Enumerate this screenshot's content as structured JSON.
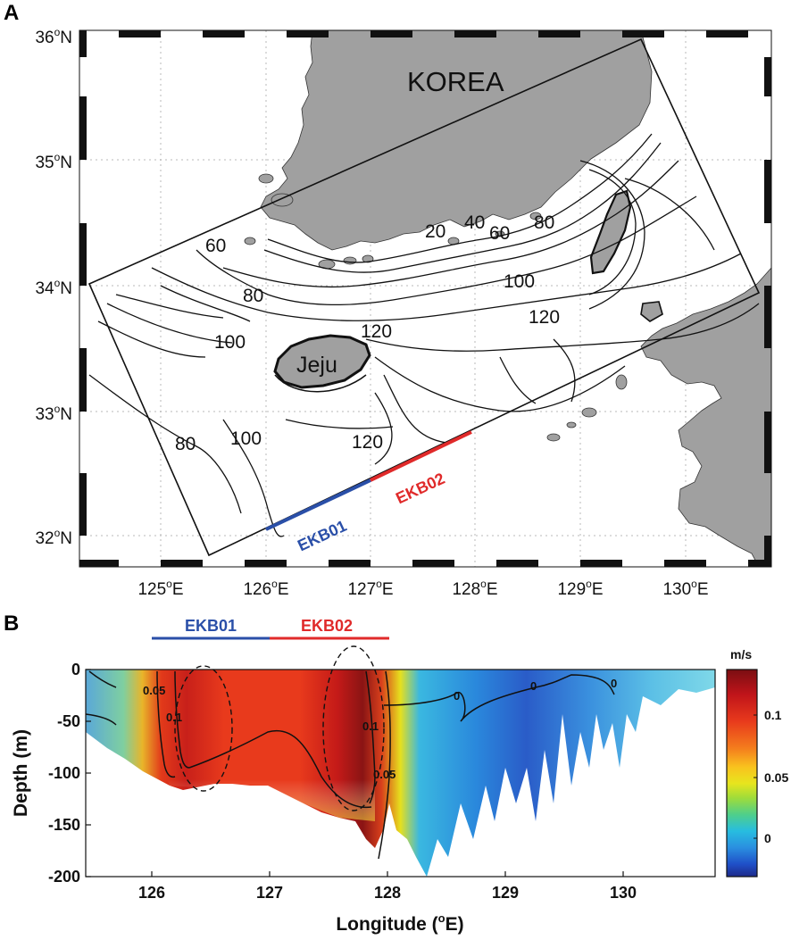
{
  "panel_a": {
    "letter": "A",
    "lat_labels": [
      {
        "deg": "36",
        "unit": "o",
        "hemi": "N"
      },
      {
        "deg": "35",
        "unit": "o",
        "hemi": "N"
      },
      {
        "deg": "34",
        "unit": "o",
        "hemi": "N"
      },
      {
        "deg": "33",
        "unit": "o",
        "hemi": "N"
      },
      {
        "deg": "32",
        "unit": "o",
        "hemi": "N"
      }
    ],
    "lon_labels": [
      {
        "deg": "125",
        "unit": "o",
        "hemi": "E"
      },
      {
        "deg": "126",
        "unit": "o",
        "hemi": "E"
      },
      {
        "deg": "127",
        "unit": "o",
        "hemi": "E"
      },
      {
        "deg": "128",
        "unit": "o",
        "hemi": "E"
      },
      {
        "deg": "129",
        "unit": "o",
        "hemi": "E"
      },
      {
        "deg": "130",
        "unit": "o",
        "hemi": "E"
      }
    ],
    "region_label": "KOREA",
    "island_label": "Jeju",
    "contour_labels": [
      "20",
      "40",
      "60",
      "80",
      "60",
      "80",
      "100",
      "120",
      "100",
      "120",
      "80",
      "100",
      "120"
    ],
    "sections": [
      {
        "name": "EKB01",
        "color": "#2a4fa8"
      },
      {
        "name": "EKB02",
        "color": "#e02a2a"
      }
    ],
    "land_color": "#a0a0a0"
  },
  "panel_b": {
    "letter": "B",
    "header_sections": [
      {
        "name": "EKB01",
        "color": "#2a4fa8"
      },
      {
        "name": "EKB02",
        "color": "#e02a2a"
      }
    ],
    "y_ticks": [
      "0",
      "-50",
      "-100",
      "-150",
      "-200"
    ],
    "x_ticks": [
      "126",
      "127",
      "128",
      "129",
      "130"
    ],
    "y_title": "Depth (m)",
    "x_title_prefix": "Longitude (",
    "x_title_sup": "o",
    "x_title_suffix": "E)",
    "contour_labels": [
      "0.05",
      "0.1",
      "0.1",
      "0.05",
      "0",
      "0",
      "0"
    ],
    "colorbar": {
      "title": "m/s",
      "tick_labels": [
        "0.1",
        "0.05",
        "0"
      ],
      "colors": [
        "#7a0e12",
        "#c0141a",
        "#e83a1c",
        "#f47d1d",
        "#f9c21e",
        "#e7e51e",
        "#9fdc3a",
        "#4fcf8a",
        "#27bde0",
        "#2a8fe0",
        "#1f4fc8",
        "#1e2a8a"
      ]
    }
  }
}
